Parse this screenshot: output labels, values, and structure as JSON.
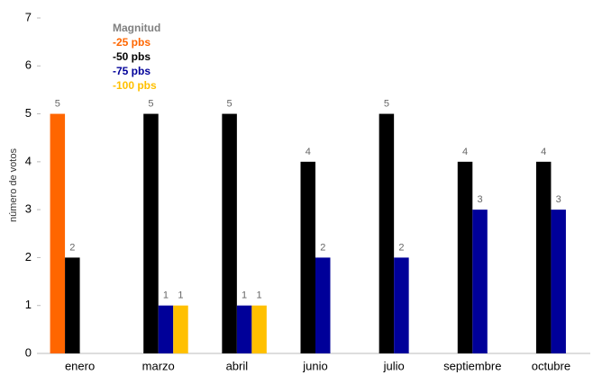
{
  "chart_data": {
    "type": "bar",
    "y_label": "número de votos",
    "legend_title": "Magnitud",
    "categories": [
      "enero",
      "marzo",
      "abril",
      "junio",
      "julio",
      "septiembre",
      "octubre"
    ],
    "series": [
      {
        "name": "-25 pbs",
        "color": "#ff6600",
        "values": [
          5,
          null,
          null,
          null,
          null,
          null,
          null
        ]
      },
      {
        "name": "-50 pbs",
        "color": "#000000",
        "values": [
          2,
          5,
          5,
          4,
          5,
          4,
          4
        ]
      },
      {
        "name": "-75 pbs",
        "color": "#000099",
        "values": [
          null,
          1,
          1,
          2,
          2,
          3,
          3
        ]
      },
      {
        "name": "-100 pbs",
        "color": "#ffc000",
        "values": [
          null,
          1,
          1,
          null,
          null,
          null,
          null
        ]
      }
    ],
    "ylim": [
      0,
      7
    ],
    "yticks": [
      0,
      1,
      2,
      3,
      4,
      5,
      6,
      7
    ],
    "grid": false
  }
}
